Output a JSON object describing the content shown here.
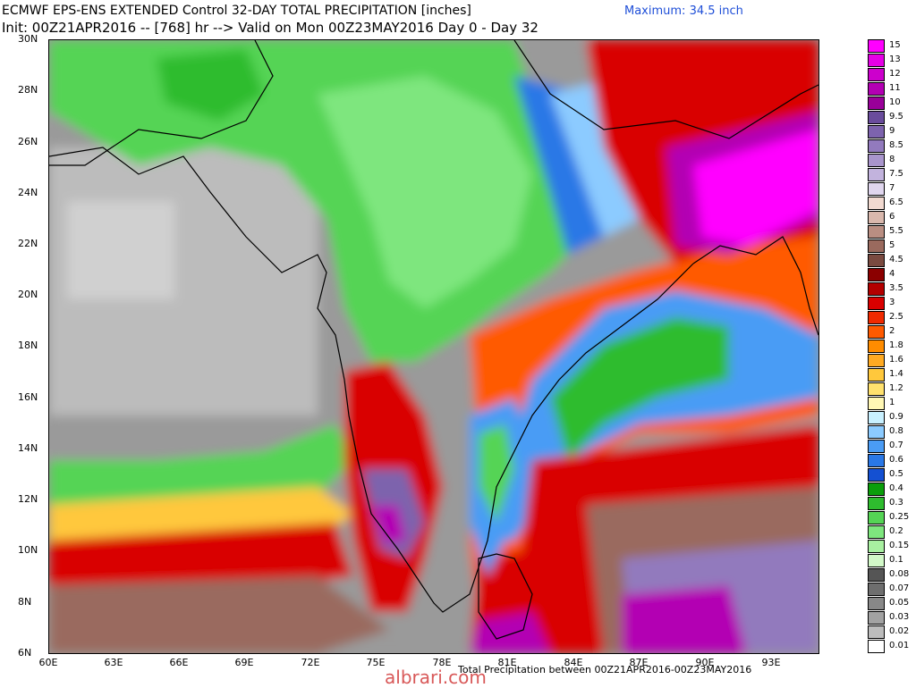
{
  "header": {
    "title_line1": "ECMWF EPS-ENS EXTENDED Control 32-DAY TOTAL PRECIPITATION [inches]",
    "title_line2": "Init: 00Z21APR2016 -- [768] hr --> Valid on Mon 00Z23MAY2016  Day 0 - Day 32",
    "maximum": "Maximum: 34.5 inch"
  },
  "map": {
    "lat_labels": [
      "30N",
      "28N",
      "26N",
      "24N",
      "22N",
      "20N",
      "18N",
      "16N",
      "14N",
      "12N",
      "10N",
      "8N",
      "6N"
    ],
    "lon_labels": [
      "60E",
      "63E",
      "66E",
      "69E",
      "72E",
      "75E",
      "78E",
      "81E",
      "84E",
      "87E",
      "90E",
      "93E"
    ],
    "footer": "Total Precipitation between 00Z21APR2016-00Z23MAY2016",
    "watermark": "albrari.com"
  },
  "legend": {
    "units": "inches",
    "items": [
      {
        "label": "15",
        "color": "#ff00ff"
      },
      {
        "label": "13",
        "color": "#e600e6"
      },
      {
        "label": "12",
        "color": "#cc00cc"
      },
      {
        "label": "11",
        "color": "#b300b3"
      },
      {
        "label": "10",
        "color": "#990099"
      },
      {
        "label": "9.5",
        "color": "#6a4c9c"
      },
      {
        "label": "9",
        "color": "#7d63ad"
      },
      {
        "label": "8.5",
        "color": "#927abd"
      },
      {
        "label": "8",
        "color": "#a995cc"
      },
      {
        "label": "7.5",
        "color": "#c2b3dd"
      },
      {
        "label": "7",
        "color": "#e0d6ee"
      },
      {
        "label": "6.5",
        "color": "#f1d9d0"
      },
      {
        "label": "6",
        "color": "#d9b8ad"
      },
      {
        "label": "5.5",
        "color": "#b98e82"
      },
      {
        "label": "5",
        "color": "#9a6a5e"
      },
      {
        "label": "4.5",
        "color": "#7a4a40"
      },
      {
        "label": "4",
        "color": "#8b0000"
      },
      {
        "label": "3.5",
        "color": "#b30000"
      },
      {
        "label": "3",
        "color": "#d90000"
      },
      {
        "label": "2.5",
        "color": "#f02a00"
      },
      {
        "label": "2",
        "color": "#ff5a00"
      },
      {
        "label": "1.8",
        "color": "#ff8c00"
      },
      {
        "label": "1.6",
        "color": "#ffaa22"
      },
      {
        "label": "1.4",
        "color": "#ffc83c"
      },
      {
        "label": "1.2",
        "color": "#ffe16e"
      },
      {
        "label": "1",
        "color": "#fff7b4"
      },
      {
        "label": "0.9",
        "color": "#c8f0ff"
      },
      {
        "label": "0.8",
        "color": "#8ccbff"
      },
      {
        "label": "0.7",
        "color": "#4a9cf5"
      },
      {
        "label": "0.6",
        "color": "#2a78e6"
      },
      {
        "label": "0.5",
        "color": "#1450d2"
      },
      {
        "label": "0.4",
        "color": "#0a9e0a"
      },
      {
        "label": "0.3",
        "color": "#2ebc2e"
      },
      {
        "label": "0.25",
        "color": "#55d455"
      },
      {
        "label": "0.2",
        "color": "#7ee67e"
      },
      {
        "label": "0.15",
        "color": "#a8f0a0"
      },
      {
        "label": "0.1",
        "color": "#d2f8c8"
      },
      {
        "label": "0.08",
        "color": "#555555"
      },
      {
        "label": "0.07",
        "color": "#6e6e6e"
      },
      {
        "label": "0.05",
        "color": "#888888"
      },
      {
        "label": "0.03",
        "color": "#a2a2a2"
      },
      {
        "label": "0.02",
        "color": "#bcbcbc"
      },
      {
        "label": "0.01",
        "color": "#ffffff"
      }
    ]
  }
}
